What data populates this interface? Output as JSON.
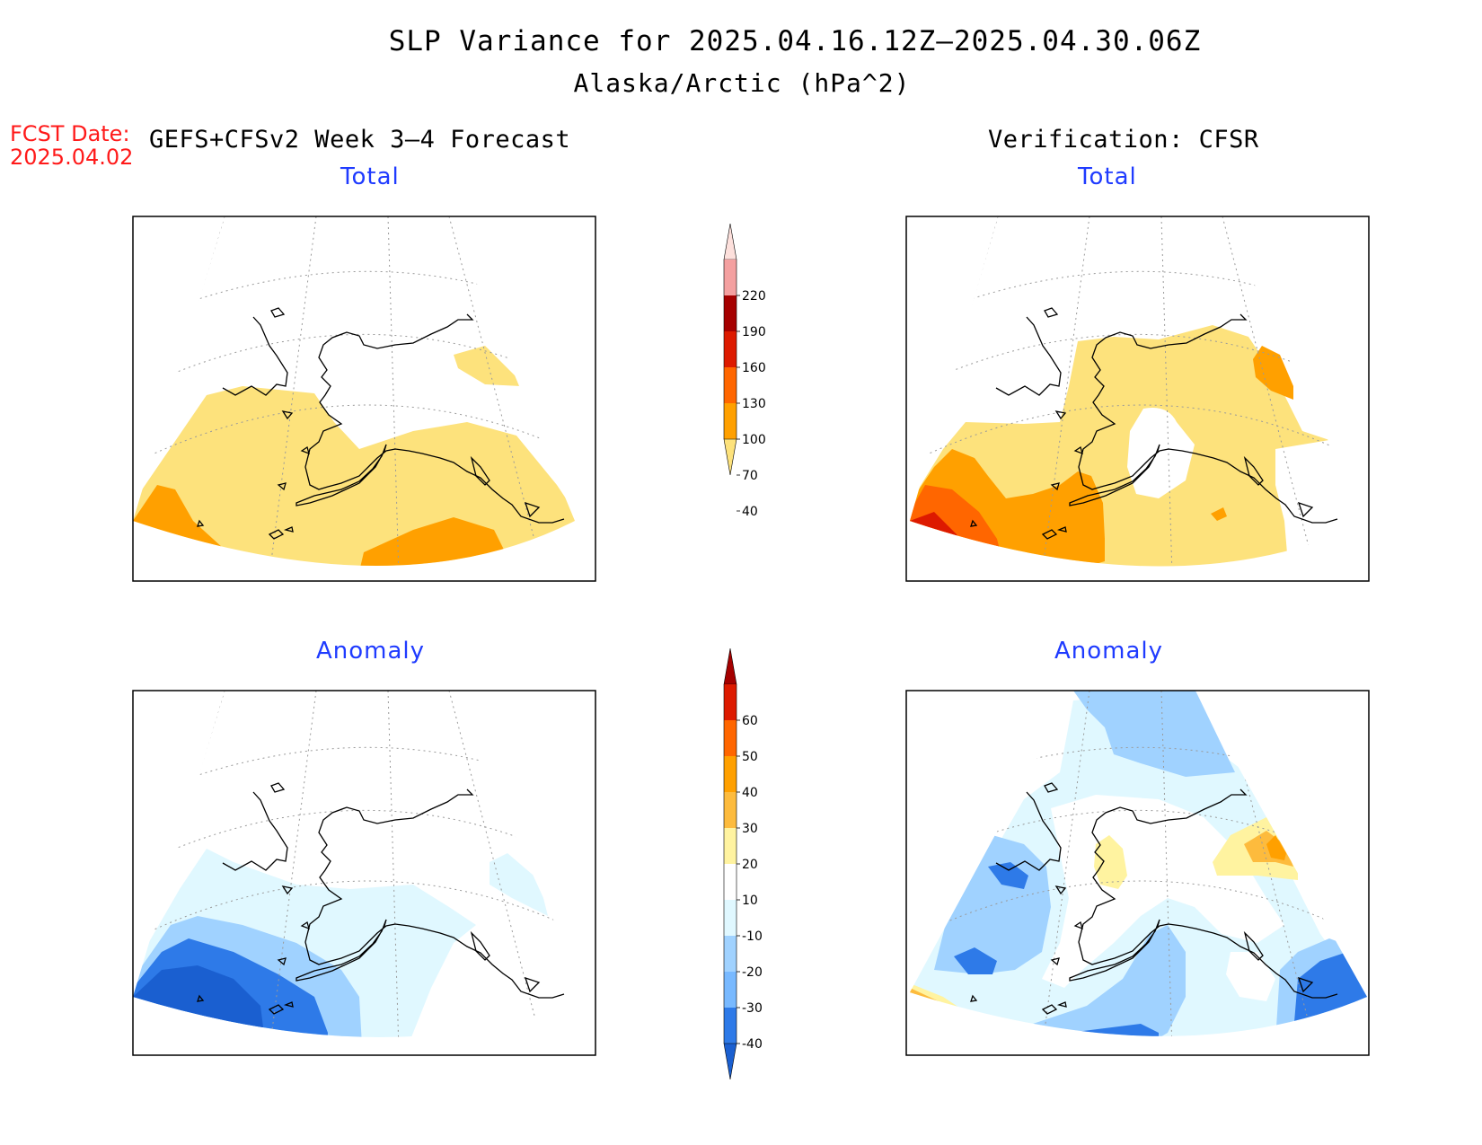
{
  "title": "SLP Variance for 2025.04.16.12Z–2025.04.30.06Z",
  "subtitle": "Alaska/Arctic (hPa^2)",
  "fcst_date_label": "FCST Date:",
  "fcst_date_value": "2025.04.02",
  "left_header": "GEFS+CFSv2 Week 3–4 Forecast",
  "right_header": "Verification: CFSR",
  "panels": {
    "top_left_title": "Total",
    "top_right_title": "Total",
    "bottom_left_title": "Anomaly",
    "bottom_right_title": "Anomaly"
  },
  "colorbar_total": {
    "labels": [
      "220",
      "190",
      "160",
      "130",
      "100",
      "70",
      "40"
    ],
    "colors": [
      "#fde0dc",
      "#f4a0a0",
      "#a50000",
      "#dd1a00",
      "#ff6600",
      "#ffa000",
      "#fde27c"
    ]
  },
  "colorbar_anomaly": {
    "labels": [
      "60",
      "50",
      "40",
      "30",
      "20",
      "10",
      "-10",
      "-20",
      "-30",
      "-40"
    ],
    "colors": [
      "#a50000",
      "#dd1a00",
      "#ff6600",
      "#ffa000",
      "#fdbb3d",
      "#fff3a0",
      "#ffffff",
      "#e0f8ff",
      "#a0d2ff",
      "#78b9ff",
      "#2e7ae8",
      "#1a5fd0"
    ]
  },
  "fill_colors": {
    "total_40_70": "#fde27c",
    "total_70_100": "#ffa000",
    "total_100_130": "#ff6600",
    "total_130_160": "#dd1a00",
    "total_160_190": "#a50000",
    "anom_m10_m20": "#e0f8ff",
    "anom_m20_m30": "#a0d2ff",
    "anom_m30_m40": "#2e7ae8",
    "anom_lt_m40": "#1a5fd0",
    "anom_10_20": "#fff3a0",
    "anom_20_30": "#fdbb3d",
    "anom_30_40": "#ffa000",
    "anom_40_50": "#ff6600"
  }
}
